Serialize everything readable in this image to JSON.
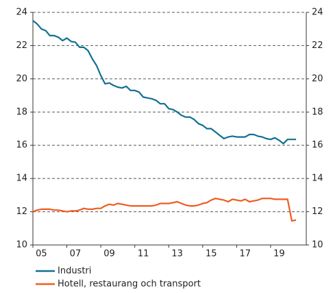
{
  "chart_data": {
    "type": "line",
    "x": [
      2005,
      2005.25,
      2005.5,
      2005.75,
      2006,
      2006.25,
      2006.5,
      2006.75,
      2007,
      2007.25,
      2007.5,
      2007.75,
      2008,
      2008.25,
      2008.5,
      2008.75,
      2009,
      2009.25,
      2009.5,
      2009.75,
      2010,
      2010.25,
      2010.5,
      2010.75,
      2011,
      2011.25,
      2011.5,
      2011.75,
      2012,
      2012.25,
      2012.5,
      2012.75,
      2013,
      2013.25,
      2013.5,
      2013.75,
      2014,
      2014.25,
      2014.5,
      2014.75,
      2015,
      2015.25,
      2015.5,
      2015.75,
      2016,
      2016.25,
      2016.5,
      2016.75,
      2017,
      2017.25,
      2017.5,
      2017.75,
      2018,
      2018.25,
      2018.5,
      2018.75,
      2019,
      2019.25,
      2019.5,
      2019.75,
      2020,
      2020.25,
      2020.5
    ],
    "series": [
      {
        "name": "Industri",
        "color": "#106f91",
        "values": [
          23.5,
          23.3,
          23.0,
          22.9,
          22.6,
          22.6,
          22.5,
          22.3,
          22.45,
          22.25,
          22.2,
          21.9,
          21.9,
          21.7,
          21.2,
          20.8,
          20.2,
          19.7,
          19.75,
          19.6,
          19.5,
          19.45,
          19.55,
          19.3,
          19.3,
          19.2,
          18.9,
          18.85,
          18.8,
          18.7,
          18.5,
          18.5,
          18.2,
          18.15,
          18.0,
          17.8,
          17.7,
          17.7,
          17.55,
          17.3,
          17.2,
          17.0,
          17.0,
          16.8,
          16.6,
          16.4,
          16.5,
          16.55,
          16.5,
          16.5,
          16.5,
          16.65,
          16.65,
          16.55,
          16.5,
          16.4,
          16.35,
          16.45,
          16.3,
          16.1,
          16.35,
          16.35,
          16.35
        ]
      },
      {
        "name": "Hotell, restaurang och transport",
        "color": "#f05a1e",
        "values": [
          12.0,
          12.1,
          12.15,
          12.15,
          12.15,
          12.1,
          12.1,
          12.05,
          12.0,
          12.05,
          12.05,
          12.1,
          12.2,
          12.15,
          12.15,
          12.2,
          12.2,
          12.35,
          12.45,
          12.4,
          12.5,
          12.45,
          12.4,
          12.35,
          12.35,
          12.35,
          12.35,
          12.35,
          12.35,
          12.4,
          12.5,
          12.5,
          12.5,
          12.55,
          12.6,
          12.5,
          12.4,
          12.35,
          12.35,
          12.4,
          12.5,
          12.55,
          12.7,
          12.8,
          12.75,
          12.7,
          12.6,
          12.75,
          12.7,
          12.65,
          12.75,
          12.6,
          12.65,
          12.7,
          12.8,
          12.8,
          12.8,
          12.75,
          12.75,
          12.75,
          12.75,
          11.45,
          11.5
        ]
      }
    ],
    "xlim": [
      2005,
      2021.1
    ],
    "xticks": [
      {
        "value": 2005,
        "label": "05"
      },
      {
        "value": 2007,
        "label": "07"
      },
      {
        "value": 2009,
        "label": "09"
      },
      {
        "value": 2011,
        "label": "11"
      },
      {
        "value": 2013,
        "label": "13"
      },
      {
        "value": 2015,
        "label": "15"
      },
      {
        "value": 2017,
        "label": "17"
      },
      {
        "value": 2019,
        "label": "19"
      }
    ],
    "ylim": [
      10,
      24
    ],
    "yticks": [
      10,
      12,
      14,
      16,
      18,
      20,
      22,
      24
    ],
    "y2lim": [
      10,
      24
    ],
    "y2ticks": [
      10,
      12,
      14,
      16,
      18,
      20,
      22,
      24
    ],
    "grid": true
  }
}
